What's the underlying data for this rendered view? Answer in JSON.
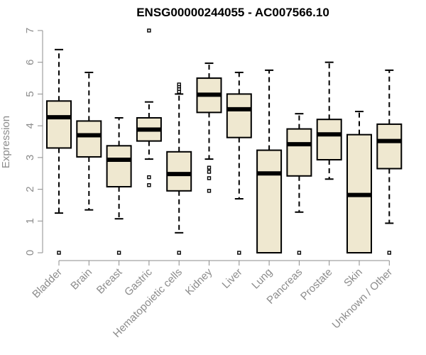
{
  "colors": {
    "box_fill": "#efe8d0",
    "box_stroke": "#000000",
    "axis": "#8c8c8c",
    "text": "#000000"
  },
  "chart_data": {
    "type": "boxplot",
    "title": "ENSG00000244055 - AC007566.10",
    "xlabel": "",
    "ylabel": "Expression",
    "ylim": [
      0,
      7
    ],
    "yticks": [
      0,
      1,
      2,
      3,
      4,
      5,
      6,
      7
    ],
    "grid": false,
    "legend": "none",
    "categories": [
      "Bladder",
      "Brain",
      "Breast",
      "Gastric",
      "Hematopoietic cells",
      "Kidney",
      "Liver",
      "Lung",
      "Pancreas",
      "Prostate",
      "Skin",
      "Unknown / Other"
    ],
    "boxes": [
      {
        "whisker_low": 1.25,
        "q1": 3.3,
        "median": 4.27,
        "q3": 4.78,
        "whisker_high": 6.4,
        "outliers": [
          0.0
        ]
      },
      {
        "whisker_low": 1.35,
        "q1": 3.02,
        "median": 3.7,
        "q3": 4.15,
        "whisker_high": 5.68,
        "outliers": []
      },
      {
        "whisker_low": 1.07,
        "q1": 2.08,
        "median": 2.93,
        "q3": 3.37,
        "whisker_high": 4.25,
        "outliers": [
          0.0
        ]
      },
      {
        "whisker_low": 2.95,
        "q1": 3.52,
        "median": 3.88,
        "q3": 4.25,
        "whisker_high": 4.75,
        "outliers": [
          7.0,
          2.38,
          2.13
        ]
      },
      {
        "whisker_low": 0.63,
        "q1": 1.95,
        "median": 2.48,
        "q3": 3.18,
        "whisker_high": 5.0,
        "outliers": [
          5.3,
          5.22,
          5.15,
          5.07,
          0.0
        ]
      },
      {
        "whisker_low": 2.95,
        "q1": 4.42,
        "median": 4.98,
        "q3": 5.5,
        "whisker_high": 5.97,
        "outliers": [
          2.68,
          2.55,
          2.35,
          1.95
        ]
      },
      {
        "whisker_low": 1.7,
        "q1": 3.63,
        "median": 4.52,
        "q3": 5.0,
        "whisker_high": 5.68,
        "outliers": [
          0.0
        ]
      },
      {
        "whisker_low": 0.0,
        "q1": 0.0,
        "median": 2.5,
        "q3": 3.23,
        "whisker_high": 5.75,
        "outliers": []
      },
      {
        "whisker_low": 1.28,
        "q1": 2.42,
        "median": 3.42,
        "q3": 3.9,
        "whisker_high": 4.38,
        "outliers": [
          0.0
        ]
      },
      {
        "whisker_low": 2.32,
        "q1": 2.93,
        "median": 3.73,
        "q3": 4.2,
        "whisker_high": 6.0,
        "outliers": []
      },
      {
        "whisker_low": 0.0,
        "q1": 0.0,
        "median": 1.82,
        "q3": 3.72,
        "whisker_high": 4.45,
        "outliers": []
      },
      {
        "whisker_low": 0.93,
        "q1": 2.65,
        "median": 3.52,
        "q3": 4.05,
        "whisker_high": 5.75,
        "outliers": [
          0.0
        ]
      }
    ]
  }
}
